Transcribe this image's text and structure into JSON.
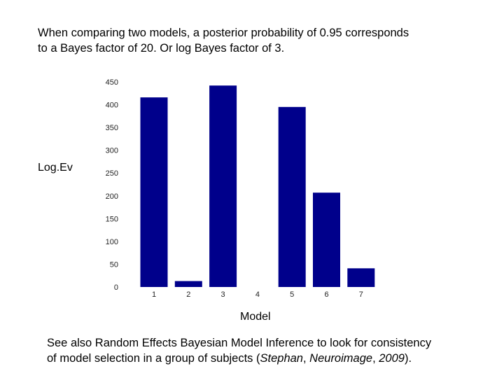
{
  "intro": {
    "line1": "When comparing two models, a posterior probability of 0.95 corresponds",
    "line2": "to a Bayes factor of 20. Or log Bayes factor of 3."
  },
  "footer": {
    "line1": "See also Random Effects Bayesian Model Inference to look for consistency",
    "line2_a": "of model selection in a group of subjects (",
    "line2_author": "Stephan",
    "line2_sep": ", ",
    "line2_journal": "Neuroimage",
    "line2_comma": ", ",
    "line2_year": "2009",
    "line2_end": ")."
  },
  "chart_data": {
    "type": "bar",
    "title": "",
    "xlabel": "Model",
    "ylabel": "Log.Ev",
    "categories": [
      "1",
      "2",
      "3",
      "4",
      "5",
      "6",
      "7"
    ],
    "values": [
      416,
      13,
      442,
      0,
      395,
      207,
      41
    ],
    "ylim": [
      0,
      450
    ],
    "yticks": [
      0,
      50,
      100,
      150,
      200,
      250,
      300,
      350,
      400,
      450
    ],
    "bar_color": "#00008b",
    "grid": false
  }
}
